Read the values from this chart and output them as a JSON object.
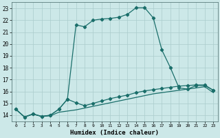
{
  "xlabel": "Humidex (Indice chaleur)",
  "bg_color": "#cce8e8",
  "line_color": "#1a6e6a",
  "grid_color": "#aacccc",
  "xlim": [
    -0.5,
    23.5
  ],
  "ylim": [
    13.5,
    23.5
  ],
  "xticks": [
    0,
    1,
    2,
    3,
    4,
    5,
    6,
    7,
    8,
    9,
    10,
    11,
    12,
    13,
    14,
    15,
    16,
    17,
    18,
    19,
    20,
    21,
    22,
    23
  ],
  "yticks": [
    14,
    15,
    16,
    17,
    18,
    19,
    20,
    21,
    22,
    23
  ],
  "curve1_x": [
    0,
    1,
    2,
    3,
    4,
    5,
    6,
    7,
    8,
    9,
    10,
    11,
    12,
    13,
    14,
    15,
    16,
    17,
    18,
    19,
    20,
    21,
    22,
    23
  ],
  "curve1_y": [
    14.5,
    13.85,
    14.1,
    13.9,
    14.0,
    14.5,
    15.35,
    21.6,
    21.45,
    22.0,
    22.1,
    22.15,
    22.25,
    22.5,
    23.05,
    23.05,
    22.2,
    19.5,
    18.0,
    16.3,
    16.2,
    16.5,
    16.5,
    16.1
  ],
  "curve2_x": [
    0,
    1,
    2,
    3,
    4,
    5,
    6,
    7,
    8,
    9,
    10,
    11,
    12,
    13,
    14,
    15,
    16,
    17,
    18,
    19,
    20,
    21,
    22,
    23
  ],
  "curve2_y": [
    14.5,
    13.85,
    14.1,
    13.9,
    14.0,
    14.5,
    15.35,
    15.05,
    14.8,
    15.0,
    15.2,
    15.4,
    15.55,
    15.7,
    15.9,
    16.05,
    16.15,
    16.25,
    16.35,
    16.45,
    16.5,
    16.55,
    16.55,
    16.1
  ],
  "curve3_x": [
    0,
    1,
    2,
    3,
    4,
    5,
    6,
    7,
    8,
    9,
    10,
    11,
    12,
    13,
    14,
    15,
    16,
    17,
    18,
    19,
    20,
    21,
    22,
    23
  ],
  "curve3_y": [
    14.5,
    13.85,
    14.1,
    13.9,
    13.95,
    14.25,
    14.35,
    14.45,
    14.6,
    14.75,
    14.9,
    15.05,
    15.2,
    15.35,
    15.5,
    15.65,
    15.8,
    15.9,
    16.0,
    16.1,
    16.2,
    16.3,
    16.4,
    15.9
  ]
}
